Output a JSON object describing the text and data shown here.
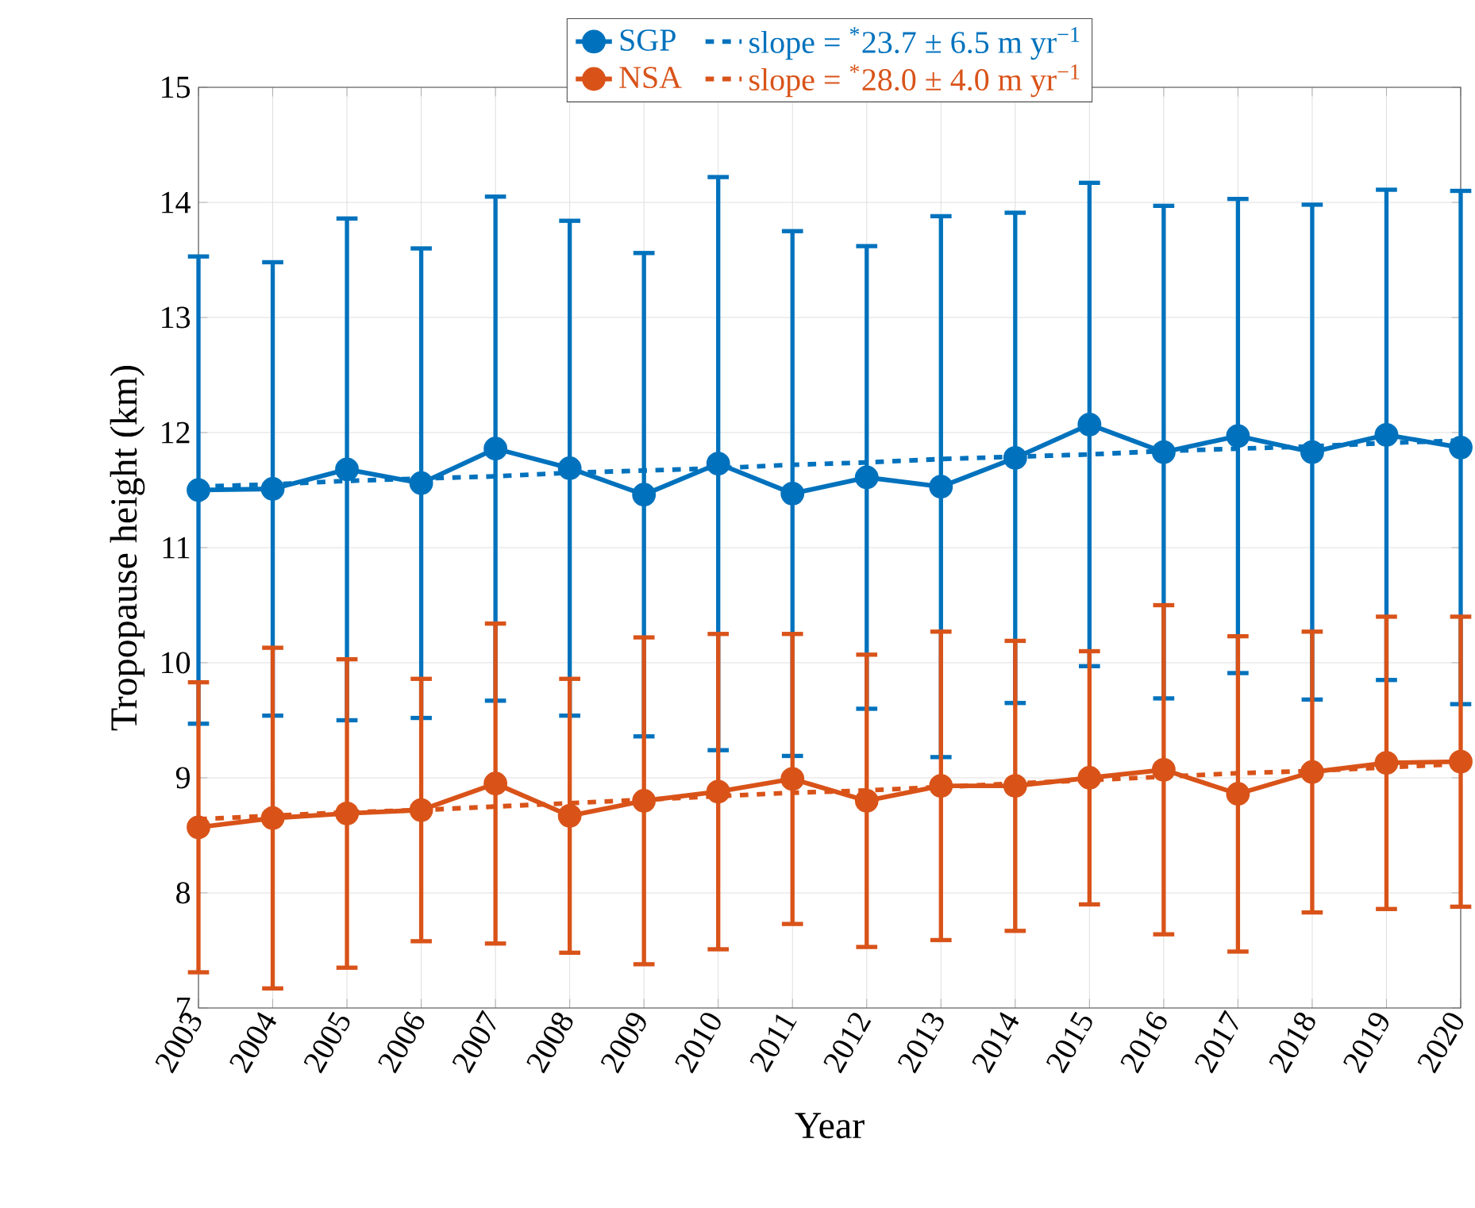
{
  "chart_data": {
    "type": "line",
    "xlabel": "Year",
    "ylabel": "Tropopause height (km)",
    "x": [
      2003,
      2004,
      2005,
      2006,
      2007,
      2008,
      2009,
      2010,
      2011,
      2012,
      2013,
      2014,
      2015,
      2016,
      2017,
      2018,
      2019,
      2020
    ],
    "series": [
      {
        "name": "SGP",
        "color": "#0072bd",
        "marker": "circle",
        "line_style": "solid",
        "values": [
          11.5,
          11.51,
          11.68,
          11.56,
          11.86,
          11.69,
          11.46,
          11.73,
          11.47,
          11.61,
          11.53,
          11.78,
          12.07,
          11.83,
          11.97,
          11.83,
          11.98,
          11.87
        ],
        "errors": [
          2.03,
          1.97,
          2.18,
          2.04,
          2.19,
          2.15,
          2.1,
          2.49,
          2.28,
          2.01,
          2.35,
          2.13,
          2.1,
          2.14,
          2.06,
          2.15,
          2.13,
          2.23
        ]
      },
      {
        "name": "slope = $^{*}$23.7 ± 6.5 m yr$^{−1}$",
        "color": "#0072bd",
        "marker": "none",
        "line_style": "dotted",
        "values": [
          11.53,
          11.55,
          11.58,
          11.6,
          11.62,
          11.65,
          11.67,
          11.69,
          11.72,
          11.74,
          11.77,
          11.79,
          11.81,
          11.84,
          11.86,
          11.88,
          11.91,
          11.93
        ]
      },
      {
        "name": "NSA",
        "color": "#d95319",
        "marker": "circle",
        "line_style": "solid",
        "values": [
          8.57,
          8.65,
          8.69,
          8.72,
          8.95,
          8.67,
          8.8,
          8.88,
          8.99,
          8.8,
          8.93,
          8.93,
          9.0,
          9.07,
          8.86,
          9.05,
          9.13,
          9.14
        ],
        "errors": [
          1.26,
          1.48,
          1.34,
          1.14,
          1.39,
          1.19,
          1.42,
          1.37,
          1.26,
          1.27,
          1.34,
          1.26,
          1.1,
          1.43,
          1.37,
          1.22,
          1.27,
          1.26
        ]
      },
      {
        "name": "slope = $^{*}$28.0 ± 4.0 m yr$^{−1}$",
        "color": "#d95319",
        "marker": "none",
        "line_style": "dotted",
        "values": [
          8.64,
          8.67,
          8.7,
          8.72,
          8.75,
          8.78,
          8.81,
          8.84,
          8.87,
          8.89,
          8.92,
          8.95,
          8.98,
          9.01,
          9.04,
          9.06,
          9.09,
          9.12
        ]
      }
    ],
    "xlim": [
      2003,
      2020
    ],
    "xticks": [
      2003,
      2004,
      2005,
      2006,
      2007,
      2008,
      2009,
      2010,
      2011,
      2012,
      2013,
      2014,
      2015,
      2016,
      2017,
      2018,
      2019,
      2020
    ],
    "ylim": [
      7,
      15
    ],
    "yticks": [
      7,
      8,
      9,
      10,
      11,
      12,
      13,
      14,
      15
    ],
    "grid": true,
    "legend": "top"
  }
}
